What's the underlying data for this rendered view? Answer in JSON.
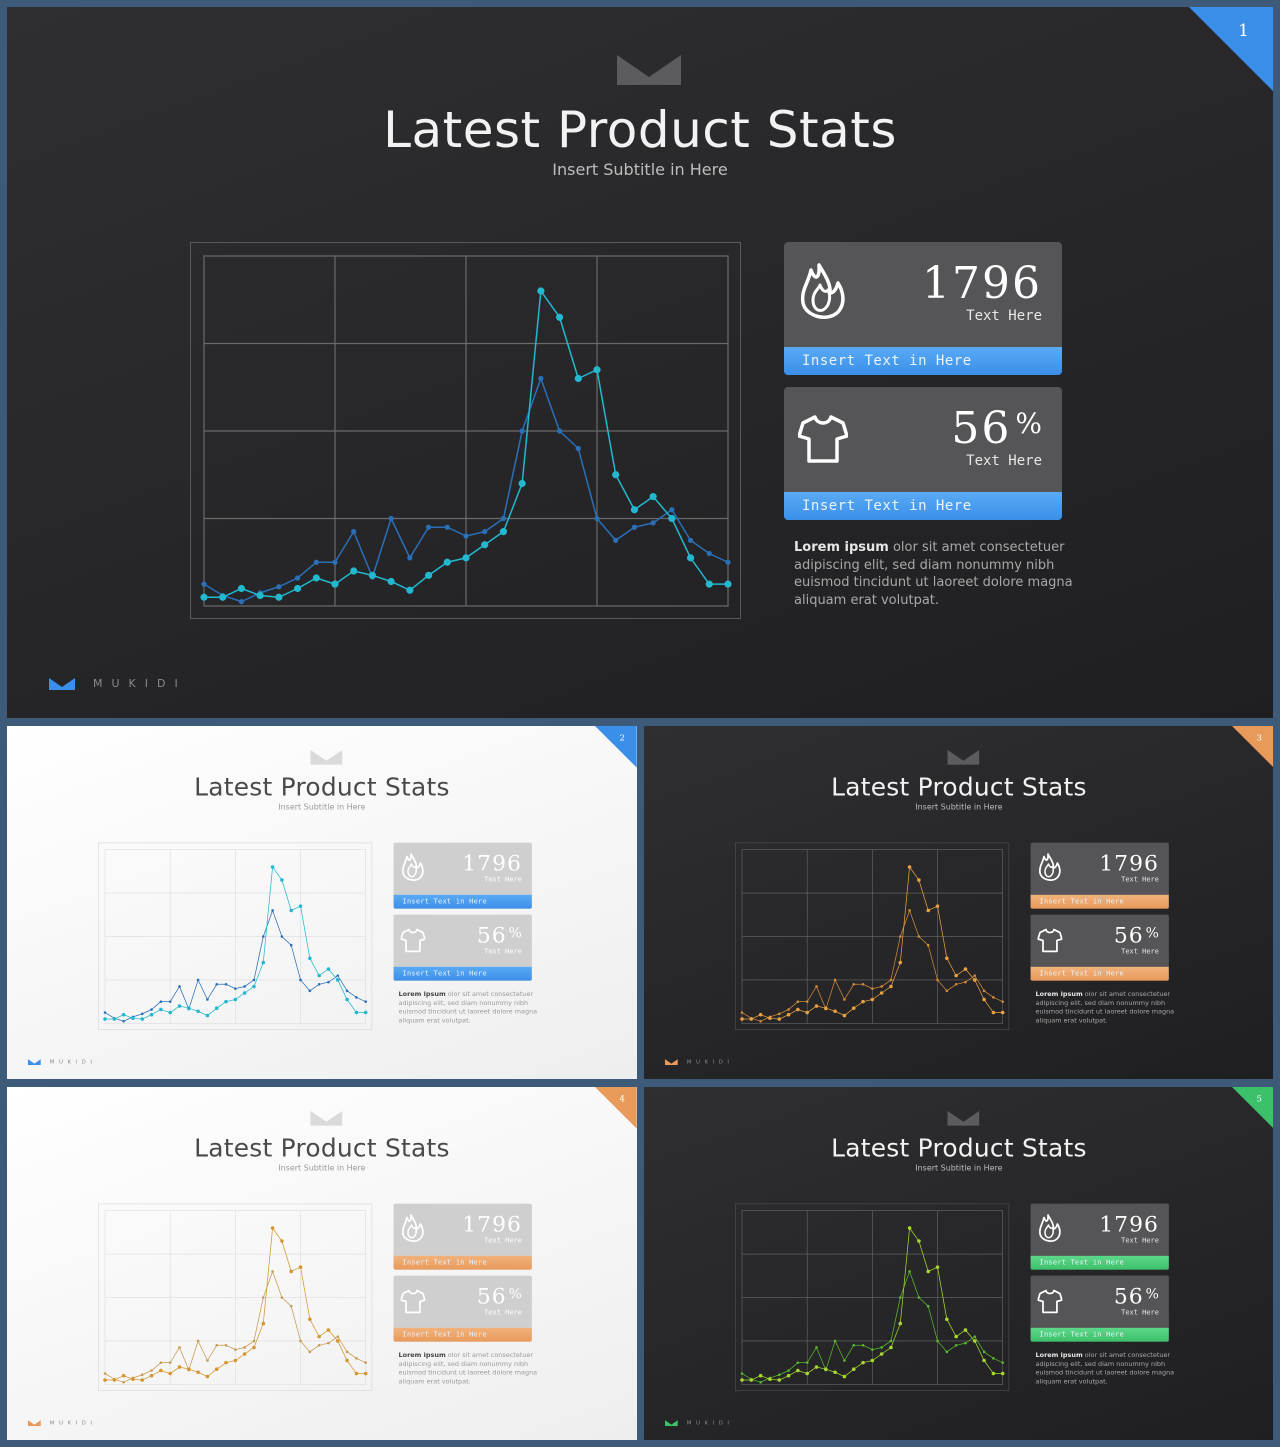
{
  "presentation": {
    "title": "Latest Product Stats",
    "subtitle": "Insert Subtitle in Here",
    "brand": "MUKIDI"
  },
  "stats": {
    "stat1": {
      "value": "1796",
      "caption": "Text Here",
      "strip": "Insert Text in Here",
      "icon": "flame-icon"
    },
    "stat2": {
      "value": "56",
      "unit": "%",
      "caption": "Text Here",
      "strip": "Insert Text in Here",
      "icon": "tshirt-icon"
    }
  },
  "description": {
    "bold": "Lorem ipsum",
    "text": " olor sit amet consectetuer adipiscing elit,  sed diam nonummy nibh euismod tincidunt ut laoreet dolore magna aliquam erat volutpat."
  },
  "slides": [
    {
      "number": "1",
      "theme": "dark",
      "accent": "#3a8fe8",
      "accent_light": "#5aaaf5",
      "series_a": "#2a6fb8",
      "series_b": "#22b8d0"
    },
    {
      "number": "2",
      "theme": "light",
      "accent": "#3a8fe8",
      "accent_light": "#5aaaf5",
      "series_a": "#2a6fb8",
      "series_b": "#22b8d0"
    },
    {
      "number": "3",
      "theme": "dark",
      "accent": "#e89a5a",
      "accent_light": "#f2b27c",
      "series_a": "#d08a3a",
      "series_b": "#e8a040"
    },
    {
      "number": "4",
      "theme": "light",
      "accent": "#e89a5a",
      "accent_light": "#f2b27c",
      "series_a": "#c89a50",
      "series_b": "#d4962e"
    },
    {
      "number": "5",
      "theme": "dark",
      "accent": "#3cc06a",
      "accent_light": "#5ed88a",
      "series_a": "#5ab82e",
      "series_b": "#a8d830"
    }
  ],
  "chart_data": {
    "type": "line",
    "xlim": [
      0,
      28
    ],
    "ylim": [
      0,
      40
    ],
    "grid": true,
    "series": [
      {
        "values": [
          2.5,
          1.2,
          0.5,
          1.5,
          2.2,
          3.2,
          5.0,
          5.0,
          8.5,
          3.3,
          10.0,
          5.5,
          9.0,
          9.0,
          8.0,
          8.5,
          10.0,
          20.0,
          26.0,
          20.0,
          18.0,
          10.0,
          7.5,
          9.0,
          9.5,
          11.0,
          7.5,
          6.0,
          5.0
        ]
      },
      {
        "values": [
          1.0,
          1.0,
          2.0,
          1.2,
          1.0,
          2.0,
          3.2,
          2.5,
          4.0,
          3.5,
          2.8,
          1.8,
          3.5,
          5.0,
          5.5,
          7.0,
          8.5,
          14.0,
          36.0,
          33.0,
          26.0,
          27.0,
          15.0,
          11.0,
          12.5,
          10.0,
          5.5,
          2.5,
          2.5
        ]
      }
    ]
  }
}
